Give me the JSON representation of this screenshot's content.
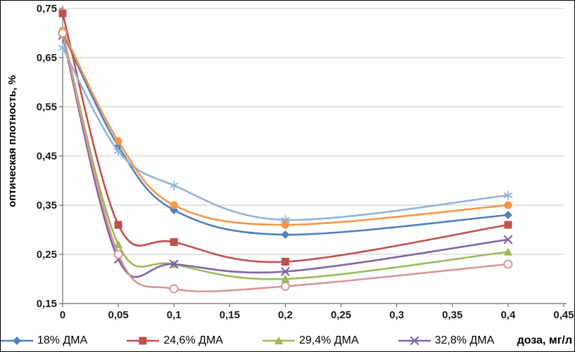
{
  "chart_data": {
    "type": "line",
    "title": "",
    "xlabel": "доза, мг/л",
    "ylabel": "оптическая плотность, %",
    "xlim": [
      0,
      0.45
    ],
    "ylim": [
      0.15,
      0.75
    ],
    "grid": "horizontal",
    "legend_position": "bottom",
    "x": [
      0,
      0.05,
      0.1,
      0.2,
      0.4
    ],
    "x_ticks": [
      "0",
      "0,05",
      "0,1",
      "0,15",
      "0,2",
      "0,25",
      "0,3",
      "0,35",
      "0,4",
      "0,45"
    ],
    "y_ticks": [
      "0,15",
      "0,25",
      "0,35",
      "0,45",
      "0,55",
      "0,65",
      "0,75"
    ],
    "series": [
      {
        "name": "18% ДМА",
        "color": "#4F81BD",
        "marker": "diamond",
        "in_legend": true,
        "values": [
          0.7,
          0.47,
          0.34,
          0.29,
          0.33
        ]
      },
      {
        "name": "24,6% ДМА",
        "color": "#C0504D",
        "marker": "square",
        "in_legend": true,
        "values": [
          0.74,
          0.31,
          0.275,
          0.235,
          0.31
        ]
      },
      {
        "name": "29,4% ДМА",
        "color": "#9BBB59",
        "marker": "triangle",
        "in_legend": true,
        "values": [
          0.7,
          0.27,
          0.23,
          0.2,
          0.255
        ]
      },
      {
        "name": "32,8% ДМА",
        "color": "#8064A2",
        "marker": "x",
        "in_legend": true,
        "values": [
          0.695,
          0.24,
          0.23,
          0.215,
          0.28
        ]
      },
      {
        "name": "",
        "color": "#95B3D7",
        "marker": "asterisk",
        "in_legend": false,
        "values": [
          0.67,
          0.46,
          0.39,
          0.32,
          0.37
        ]
      },
      {
        "name": "",
        "color": "#F79646",
        "marker": "circle",
        "in_legend": false,
        "values": [
          0.705,
          0.48,
          0.35,
          0.31,
          0.35
        ]
      },
      {
        "name": "",
        "color": "#D99694",
        "marker": "open-circle",
        "in_legend": false,
        "values": [
          0.7,
          0.25,
          0.18,
          0.185,
          0.23
        ]
      }
    ],
    "legend": [
      "18% ДМА",
      "24,6% ДМА",
      "29,4% ДМА",
      "32,8% ДМА"
    ],
    "colors": {
      "gridline": "#C9C9C9",
      "axis": "#4D4D4D",
      "tick_label": "#1A1A1A"
    }
  }
}
